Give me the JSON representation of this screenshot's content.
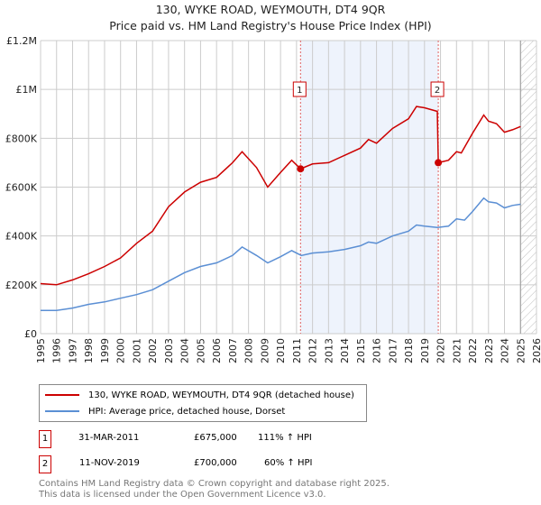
{
  "chart_data": {
    "type": "line",
    "title": "130, WYKE ROAD, WEYMOUTH, DT4 9QR",
    "subtitle": "Price paid vs. HM Land Registry's House Price Index (HPI)",
    "xlim": [
      1995,
      2026
    ],
    "ylim": [
      0,
      1200000
    ],
    "x_ticks": [
      "1995",
      "1996",
      "1997",
      "1998",
      "1999",
      "2000",
      "2001",
      "2002",
      "2003",
      "2004",
      "2005",
      "2006",
      "2007",
      "2008",
      "2009",
      "2010",
      "2011",
      "2012",
      "2013",
      "2014",
      "2015",
      "2016",
      "2017",
      "2018",
      "2019",
      "2020",
      "2021",
      "2022",
      "2023",
      "2024",
      "2025",
      "2026"
    ],
    "y_ticks": [
      {
        "v": 0,
        "label": "£0"
      },
      {
        "v": 200000,
        "label": "£200K"
      },
      {
        "v": 400000,
        "label": "£400K"
      },
      {
        "v": 600000,
        "label": "£600K"
      },
      {
        "v": 800000,
        "label": "£800K"
      },
      {
        "v": 1000000,
        "label": "£1M"
      },
      {
        "v": 1200000,
        "label": "£1.2M"
      }
    ],
    "grid": true,
    "series": [
      {
        "name": "130, WYKE ROAD, WEYMOUTH, DT4 9QR (detached house)",
        "color": "#cc0000",
        "x": [
          1995,
          1996,
          1997,
          1998,
          1999,
          2000,
          2001,
          2002,
          2003,
          2004,
          2005,
          2006,
          2007,
          2007.6,
          2008.5,
          2009.2,
          2010,
          2010.7,
          2011.25,
          2012,
          2013,
          2014,
          2015,
          2015.5,
          2016,
          2017,
          2018,
          2018.5,
          2019,
          2019.8,
          2019.86,
          2020.5,
          2021,
          2021.3,
          2022,
          2022.7,
          2023,
          2023.5,
          2024,
          2024.5,
          2025
        ],
        "y": [
          205000,
          200000,
          220000,
          245000,
          275000,
          310000,
          370000,
          420000,
          520000,
          580000,
          620000,
          640000,
          700000,
          745000,
          680000,
          600000,
          660000,
          710000,
          675000,
          695000,
          700000,
          730000,
          760000,
          795000,
          780000,
          840000,
          880000,
          930000,
          925000,
          910000,
          700000,
          710000,
          745000,
          740000,
          820000,
          895000,
          870000,
          860000,
          825000,
          835000,
          848000
        ]
      },
      {
        "name": "HPI: Average price, detached house, Dorset",
        "color": "#5b8fd4",
        "x": [
          1995,
          1996,
          1997,
          1998,
          1999,
          2000,
          2001,
          2002,
          2003,
          2004,
          2005,
          2006,
          2007,
          2007.6,
          2008.5,
          2009.2,
          2010,
          2010.7,
          2011.3,
          2012,
          2013,
          2014,
          2015,
          2015.5,
          2016,
          2017,
          2018,
          2018.5,
          2019,
          2019.8,
          2020.5,
          2021,
          2021.5,
          2022,
          2022.7,
          2023,
          2023.5,
          2024,
          2024.5,
          2025
        ],
        "y": [
          95000,
          95000,
          105000,
          120000,
          130000,
          145000,
          160000,
          180000,
          215000,
          250000,
          275000,
          290000,
          320000,
          355000,
          320000,
          290000,
          315000,
          340000,
          320000,
          330000,
          335000,
          345000,
          360000,
          375000,
          370000,
          400000,
          420000,
          445000,
          440000,
          435000,
          440000,
          470000,
          465000,
          500000,
          555000,
          540000,
          535000,
          515000,
          525000,
          530000
        ]
      }
    ],
    "sales": [
      {
        "label": "1",
        "x": 2011.25,
        "y": 675000,
        "date": "31-MAR-2011",
        "price": "£675,000",
        "hpi": "111% ↑ HPI"
      },
      {
        "label": "2",
        "x": 2019.86,
        "y": 700000,
        "date": "11-NOV-2019",
        "price": "£700,000",
        "hpi": "60% ↑ HPI"
      }
    ],
    "forecast_start": 2025.0,
    "legend_placement": "below"
  },
  "footer": [
    "Contains HM Land Registry data © Crown copyright and database right 2025.",
    "This data is licensed under the Open Government Licence v3.0."
  ]
}
